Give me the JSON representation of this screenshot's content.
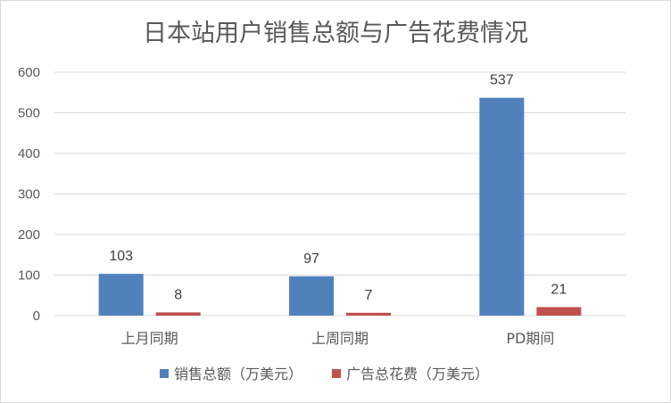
{
  "chart_data": {
    "type": "bar",
    "title": "日本站用户销售总额与广告花费情况",
    "categories": [
      "上月同期",
      "上周同期",
      "PD期间"
    ],
    "series": [
      {
        "name": "销售总额（万美元）",
        "values": [
          103,
          97,
          537
        ],
        "color": "#4f81bd"
      },
      {
        "name": "广告总花费（万美元）",
        "values": [
          8,
          7,
          21
        ],
        "color": "#c0504d"
      }
    ],
    "ylim": [
      0,
      600
    ],
    "yticks": [
      0,
      100,
      200,
      300,
      400,
      500,
      600
    ],
    "grid": true,
    "legend_position": "bottom",
    "data_labels": true
  }
}
